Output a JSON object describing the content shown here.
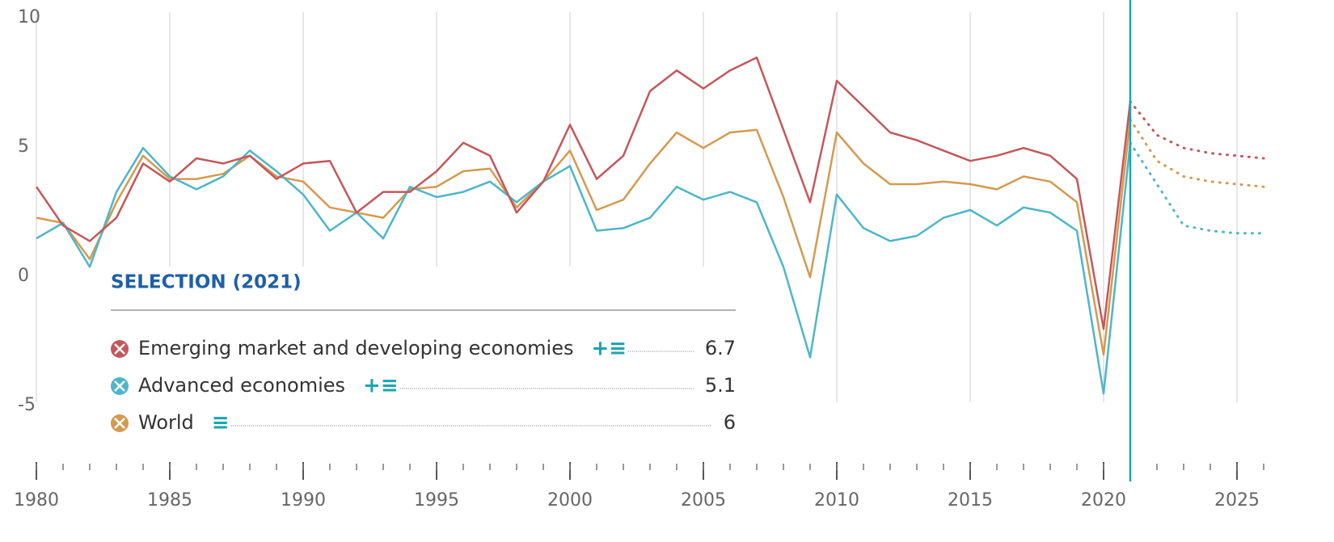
{
  "chart_data": {
    "type": "line",
    "x": [
      1980,
      1981,
      1982,
      1983,
      1984,
      1985,
      1986,
      1987,
      1988,
      1989,
      1990,
      1991,
      1992,
      1993,
      1994,
      1995,
      1996,
      1997,
      1998,
      1999,
      2000,
      2001,
      2002,
      2003,
      2004,
      2005,
      2006,
      2007,
      2008,
      2009,
      2010,
      2011,
      2012,
      2013,
      2014,
      2015,
      2016,
      2017,
      2018,
      2019,
      2020,
      2021,
      2022,
      2023,
      2024,
      2025,
      2026
    ],
    "xlim": [
      1980,
      2026
    ],
    "xticks": [
      1980,
      1985,
      1990,
      1995,
      2000,
      2005,
      2010,
      2015,
      2020,
      2025
    ],
    "ylim": [
      -7.5,
      10
    ],
    "yticks": [
      -5,
      0,
      5,
      10
    ],
    "projection_start": 2021,
    "selection_title": "SELECTION (2021)",
    "selection_index": 41,
    "series": [
      {
        "name": "Emerging market and developing economies",
        "color": "#c4575a",
        "tools": "+≡",
        "values": [
          3.4,
          1.9,
          1.3,
          2.2,
          4.3,
          3.6,
          4.5,
          4.3,
          4.6,
          3.7,
          4.3,
          4.4,
          2.4,
          3.2,
          3.2,
          4.0,
          5.1,
          4.6,
          2.4,
          3.6,
          5.8,
          3.7,
          4.6,
          7.1,
          7.9,
          7.2,
          7.9,
          8.4,
          5.6,
          2.8,
          7.5,
          6.5,
          5.5,
          5.2,
          4.8,
          4.4,
          4.6,
          4.9,
          4.6,
          3.7,
          -2.1,
          6.7,
          5.4,
          4.9,
          4.7,
          4.6,
          4.5
        ]
      },
      {
        "name": "Advanced economies",
        "color": "#4db6c8",
        "tools": "+≡",
        "values": [
          1.4,
          2.0,
          0.3,
          3.2,
          4.9,
          3.8,
          3.3,
          3.8,
          4.8,
          4.0,
          3.1,
          1.7,
          2.4,
          1.4,
          3.4,
          3.0,
          3.2,
          3.6,
          2.8,
          3.6,
          4.2,
          1.7,
          1.8,
          2.2,
          3.4,
          2.9,
          3.2,
          2.8,
          0.3,
          -3.2,
          3.1,
          1.8,
          1.3,
          1.5,
          2.2,
          2.5,
          1.9,
          2.6,
          2.4,
          1.7,
          -4.6,
          5.1,
          3.5,
          1.9,
          1.7,
          1.6,
          1.6
        ]
      },
      {
        "name": "World",
        "color": "#d49a4f",
        "tools": "≡",
        "values": [
          2.2,
          2.0,
          0.6,
          2.8,
          4.6,
          3.7,
          3.7,
          3.9,
          4.6,
          3.8,
          3.6,
          2.6,
          2.4,
          2.2,
          3.3,
          3.4,
          4.0,
          4.1,
          2.6,
          3.6,
          4.8,
          2.5,
          2.9,
          4.3,
          5.5,
          4.9,
          5.5,
          5.6,
          3.0,
          -0.1,
          5.5,
          4.3,
          3.5,
          3.5,
          3.6,
          3.5,
          3.3,
          3.8,
          3.6,
          2.8,
          -3.1,
          6.0,
          4.4,
          3.8,
          3.6,
          3.5,
          3.4
        ]
      }
    ]
  }
}
